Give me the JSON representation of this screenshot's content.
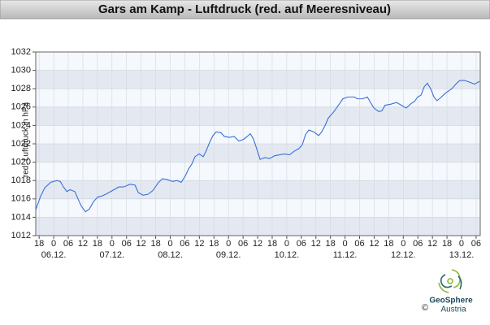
{
  "chart_data": {
    "type": "line",
    "title": "Gars am Kamp - Luftdruck (red. auf Meeresniveau)",
    "y_label": "red. Luftdruck in hPa",
    "ylim": [
      1012,
      1032
    ],
    "yticks": [
      1012,
      1014,
      1016,
      1018,
      1020,
      1022,
      1024,
      1026,
      1028,
      1030,
      1032
    ],
    "xlim": [
      -7.4,
      175.7
    ],
    "xticks": [
      {
        "value": -6,
        "label": "18"
      },
      {
        "value": 0,
        "label": "0"
      },
      {
        "value": 6,
        "label": "06"
      },
      {
        "value": 12,
        "label": "12"
      },
      {
        "value": 18,
        "label": "18"
      },
      {
        "value": 24,
        "label": "0"
      },
      {
        "value": 30,
        "label": "06"
      },
      {
        "value": 36,
        "label": "12"
      },
      {
        "value": 42,
        "label": "18"
      },
      {
        "value": 48,
        "label": "0"
      },
      {
        "value": 54,
        "label": "06"
      },
      {
        "value": 60,
        "label": "12"
      },
      {
        "value": 66,
        "label": "18"
      },
      {
        "value": 72,
        "label": "0"
      },
      {
        "value": 78,
        "label": "06"
      },
      {
        "value": 84,
        "label": "12"
      },
      {
        "value": 90,
        "label": "18"
      },
      {
        "value": 96,
        "label": "0"
      },
      {
        "value": 102,
        "label": "06"
      },
      {
        "value": 108,
        "label": "12"
      },
      {
        "value": 114,
        "label": "18"
      },
      {
        "value": 120,
        "label": "0"
      },
      {
        "value": 126,
        "label": "06"
      },
      {
        "value": 132,
        "label": "12"
      },
      {
        "value": 138,
        "label": "18"
      },
      {
        "value": 144,
        "label": "0"
      },
      {
        "value": 150,
        "label": "06"
      },
      {
        "value": 156,
        "label": "12"
      },
      {
        "value": 162,
        "label": "18"
      },
      {
        "value": 168,
        "label": "0"
      },
      {
        "value": 174,
        "label": "06"
      }
    ],
    "date_labels": [
      {
        "value": 0,
        "label": "06.12."
      },
      {
        "value": 24,
        "label": "07.12."
      },
      {
        "value": 48,
        "label": "08.12."
      },
      {
        "value": 72,
        "label": "09.12."
      },
      {
        "value": 96,
        "label": "10.12."
      },
      {
        "value": 120,
        "label": "11.12."
      },
      {
        "value": 144,
        "label": "12.12."
      },
      {
        "value": 168,
        "label": "13.12."
      }
    ],
    "grid": true,
    "x": [
      -7.4,
      -5.4,
      -3.7,
      -1.3,
      1.3,
      2.7,
      4.0,
      5.4,
      6.7,
      8.7,
      10.0,
      11.4,
      13.1,
      14.7,
      16.4,
      18.1,
      19.7,
      21.4,
      24.8,
      26.8,
      28.8,
      31.5,
      33.5,
      34.8,
      36.8,
      38.8,
      40.8,
      43.2,
      44.8,
      46.9,
      48.9,
      50.9,
      52.5,
      54.2,
      55.6,
      56.9,
      58.2,
      59.9,
      61.6,
      62.9,
      64.3,
      65.6,
      66.9,
      68.9,
      70.3,
      72.3,
      74.3,
      76.3,
      78.3,
      79.7,
      81.0,
      82.3,
      83.7,
      85.0,
      87.0,
      89.0,
      91.0,
      93.0,
      95.0,
      97.1,
      99.1,
      101.1,
      102.4,
      103.7,
      105.1,
      107.1,
      109.1,
      110.4,
      111.8,
      113.1,
      115.1,
      116.5,
      117.8,
      119.1,
      121.2,
      123.8,
      125.2,
      127.2,
      129.2,
      130.5,
      131.9,
      133.9,
      135.2,
      136.5,
      138.6,
      141.2,
      143.2,
      145.2,
      147.3,
      148.6,
      149.9,
      151.3,
      152.6,
      153.9,
      155.3,
      156.6,
      157.9,
      159.3,
      161.3,
      164.0,
      166.0,
      167.3,
      169.3,
      171.4,
      173.4,
      175.4
    ],
    "series": [
      {
        "color": "#3a6fd8",
        "values": [
          1014.8,
          1016.3,
          1017.2,
          1017.8,
          1018.0,
          1017.9,
          1017.3,
          1016.8,
          1017.0,
          1016.8,
          1016.0,
          1015.2,
          1014.6,
          1014.9,
          1015.7,
          1016.2,
          1016.3,
          1016.5,
          1017.0,
          1017.3,
          1017.3,
          1017.6,
          1017.5,
          1016.7,
          1016.4,
          1016.5,
          1016.9,
          1017.8,
          1018.2,
          1018.1,
          1017.9,
          1018.0,
          1017.8,
          1018.5,
          1019.3,
          1019.8,
          1020.6,
          1020.9,
          1020.6,
          1021.3,
          1022.2,
          1022.9,
          1023.3,
          1023.2,
          1022.8,
          1022.7,
          1022.8,
          1022.3,
          1022.5,
          1022.8,
          1023.1,
          1022.5,
          1021.4,
          1020.3,
          1020.5,
          1020.4,
          1020.7,
          1020.8,
          1020.9,
          1020.8,
          1021.2,
          1021.5,
          1021.9,
          1023.0,
          1023.5,
          1023.3,
          1022.9,
          1023.3,
          1024.0,
          1024.8,
          1025.4,
          1025.9,
          1026.4,
          1026.9,
          1027.1,
          1027.1,
          1026.9,
          1026.9,
          1027.1,
          1026.5,
          1025.9,
          1025.5,
          1025.6,
          1026.2,
          1026.3,
          1026.5,
          1026.2,
          1025.9,
          1026.4,
          1026.6,
          1027.1,
          1027.3,
          1028.2,
          1028.6,
          1028.0,
          1027.1,
          1026.7,
          1027.0,
          1027.5,
          1028.0,
          1028.6,
          1028.9,
          1028.9,
          1028.7,
          1028.5,
          1028.8
        ]
      }
    ]
  },
  "footer": {
    "logo": "GeoSphere",
    "logo_sub": "Austria",
    "copyright": "©"
  }
}
